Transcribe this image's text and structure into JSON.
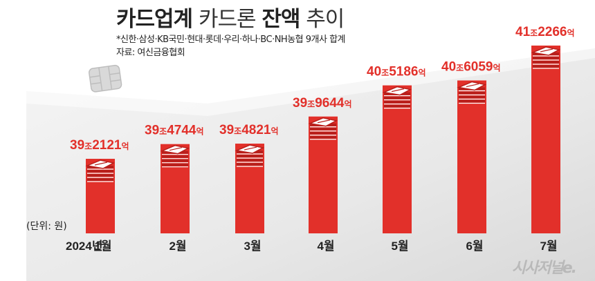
{
  "header": {
    "title_bold_1": "카드업계",
    "title_light_1": " 카드론 ",
    "title_bold_2": "잔액",
    "title_light_2": " 추이",
    "note": "*신한·삼성·KB국민·현대·롯데·우리·하나·BC·NH농협 9개사 합계",
    "source": "자료: 여신금융협회"
  },
  "unit_label": "(단위: 원)",
  "brand": "시사저널e.",
  "year_label": "2024년",
  "colors": {
    "bar": "#e2302a",
    "bar_dark": "#b81f1b",
    "label": "#e2302a",
    "stripe": "#ffffff"
  },
  "icons": [
    "card-chip-icon",
    "money-stack-icon"
  ],
  "chart_data": {
    "type": "bar",
    "categories": [
      "1월",
      "2월",
      "3월",
      "4월",
      "5월",
      "6월",
      "7월"
    ],
    "values": [
      39.2121,
      39.4744,
      39.4821,
      39.9644,
      40.5186,
      40.6059,
      41.2266
    ],
    "value_unit": "조 원",
    "data_labels": [
      {
        "big": "39",
        "jo": "조",
        "rest": "2121",
        "eok": "억"
      },
      {
        "big": "39",
        "jo": "조",
        "rest": "4744",
        "eok": "억"
      },
      {
        "big": "39",
        "jo": "조",
        "rest": "4821",
        "eok": "억"
      },
      {
        "big": "39",
        "jo": "조",
        "rest": "9644",
        "eok": "억"
      },
      {
        "big": "40",
        "jo": "조",
        "rest": "5186",
        "eok": "억"
      },
      {
        "big": "40",
        "jo": "조",
        "rest": "6059",
        "eok": "억"
      },
      {
        "big": "41",
        "jo": "조",
        "rest": "2266",
        "eok": "억"
      }
    ],
    "title": "카드업계 카드론 잔액 추이",
    "xlabel": "",
    "ylabel": "",
    "grid": false,
    "legend": "none"
  }
}
